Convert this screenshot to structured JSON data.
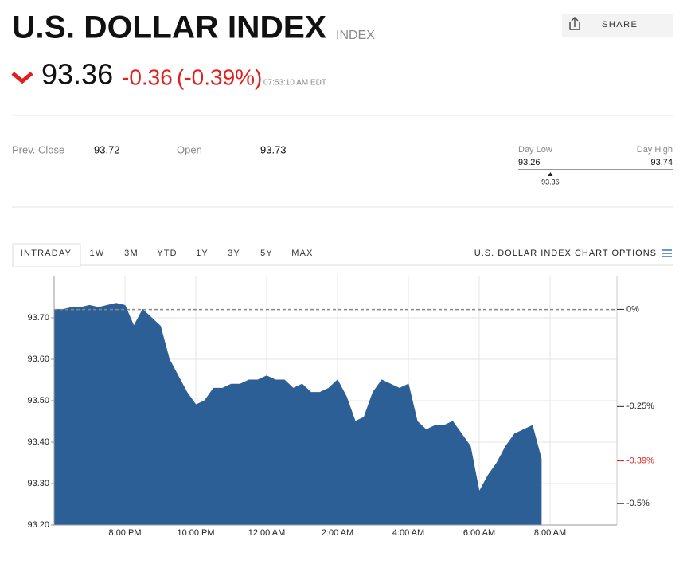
{
  "header": {
    "title": "U.S. DOLLAR INDEX",
    "tag": "INDEX",
    "price": 93.36,
    "change": -0.36,
    "change_percent": "(-0.39%)",
    "time": "07:53:10 AM EDT",
    "share": "SHARE"
  },
  "stats": {
    "prev_close_label": "Prev. Close",
    "prev_close": 93.72,
    "open_label": "Open",
    "open": 93.73,
    "day_low_label": "Day Low",
    "day_low": 93.26,
    "day_high_label": "Day High",
    "day_high": 93.74,
    "current": 93.36
  },
  "tabs": [
    "INTRADAY",
    "1W",
    "3M",
    "YTD",
    "1Y",
    "3Y",
    "5Y",
    "MAX"
  ],
  "chart_options": "U.S. DOLLAR INDEX CHART OPTIONS",
  "chart_data": {
    "type": "area",
    "color": "#2d5f97",
    "categories": [
      null,
      null,
      null,
      null,
      null,
      null,
      null,
      null,
      "8:00 PM",
      null,
      null,
      null,
      null,
      null,
      null,
      null,
      "10:00 PM",
      null,
      null,
      null,
      null,
      null,
      null,
      null,
      "12:00 AM",
      null,
      null,
      null,
      null,
      null,
      null,
      null,
      "2:00 AM",
      null,
      null,
      null,
      null,
      null,
      null,
      null,
      "4:00 AM",
      null,
      null,
      null,
      null,
      null,
      null,
      null,
      "6:00 AM",
      null,
      null,
      null,
      null,
      null,
      null,
      null,
      "8:00 AM"
    ],
    "values": [
      93.72,
      93.72,
      93.725,
      93.725,
      93.73,
      93.725,
      93.73,
      93.735,
      93.73,
      93.68,
      93.72,
      93.7,
      93.68,
      93.6,
      93.56,
      93.52,
      93.49,
      93.5,
      93.53,
      93.53,
      93.54,
      93.54,
      93.55,
      93.55,
      93.56,
      93.55,
      93.55,
      93.53,
      93.54,
      93.52,
      93.52,
      93.53,
      93.55,
      93.51,
      93.45,
      93.46,
      93.52,
      93.55,
      93.54,
      93.53,
      93.54,
      93.45,
      93.43,
      93.44,
      93.44,
      93.45,
      93.42,
      93.39,
      93.28,
      93.32,
      93.35,
      93.39,
      93.42,
      93.43,
      93.44,
      93.36,
      null
    ],
    "ylim": [
      93.2,
      93.8
    ],
    "yticks": [
      {
        "value": 93.2,
        "label": "93.20"
      },
      {
        "value": 93.3,
        "label": "93.30"
      },
      {
        "value": 93.4,
        "label": "93.40"
      },
      {
        "value": 93.5,
        "label": "93.50"
      },
      {
        "value": 93.6,
        "label": "93.60"
      },
      {
        "value": 93.7,
        "label": "93.70"
      }
    ],
    "y2lim": [
      -0.555,
      0.085
    ],
    "y2ticks": [
      {
        "value": 0,
        "label": "0%"
      },
      {
        "value": -0.25,
        "label": "-0.25%"
      },
      {
        "value": -0.39,
        "label": "-0.39%",
        "color": "#e0201d"
      },
      {
        "value": -0.5,
        "label": "-0.5%"
      }
    ],
    "reference_line": 93.72,
    "grid": true
  }
}
